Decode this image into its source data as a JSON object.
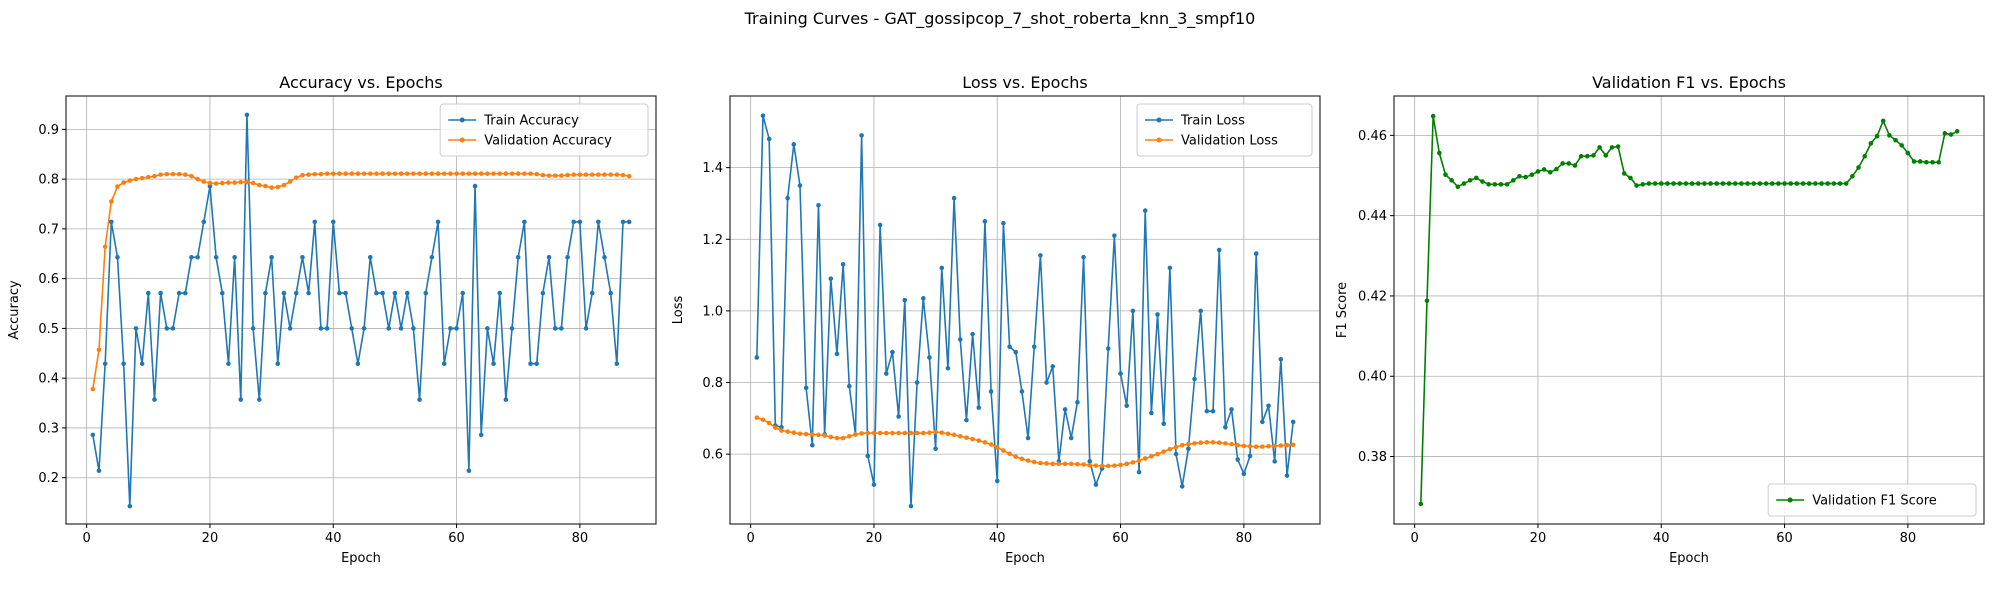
{
  "figure": {
    "suptitle": "Training Curves - GAT_gossipcop_7_shot_roberta_knn_3_smpf10"
  },
  "colors": {
    "blue": "#1f77b4",
    "orange": "#ff7f0e",
    "green": "#008000",
    "grid": "#b0b0b0"
  },
  "chart_data": [
    {
      "type": "line",
      "title": "Accuracy vs. Epochs",
      "xlabel": "Epoch",
      "ylabel": "Accuracy",
      "xlim": [
        -3.35,
        92.35
      ],
      "ylim": [
        0.107,
        0.967
      ],
      "xticks": [
        0,
        20,
        40,
        60,
        80
      ],
      "yticks": [
        0.2,
        0.3,
        0.4,
        0.5,
        0.6,
        0.7,
        0.8,
        0.9
      ],
      "ytick_decimals": 1,
      "grid": true,
      "legend_position": "upper-right",
      "series": [
        {
          "name": "Train Accuracy",
          "color": "#1f77b4",
          "x": [
            1,
            2,
            3,
            4,
            5,
            6,
            7,
            8,
            9,
            10,
            11,
            12,
            13,
            14,
            15,
            16,
            17,
            18,
            19,
            20,
            21,
            22,
            23,
            24,
            25,
            26,
            27,
            28,
            29,
            30,
            31,
            32,
            33,
            34,
            35,
            36,
            37,
            38,
            39,
            40,
            41,
            42,
            43,
            44,
            45,
            46,
            47,
            48,
            49,
            50,
            51,
            52,
            53,
            54,
            55,
            56,
            57,
            58,
            59,
            60,
            61,
            62,
            63,
            64,
            65,
            66,
            67,
            68,
            69,
            70,
            71,
            72,
            73,
            74,
            75,
            76,
            77,
            78,
            79,
            80,
            81,
            82,
            83,
            84,
            85,
            86,
            87,
            88
          ],
          "values": [
            0.286,
            0.214,
            0.429,
            0.714,
            0.643,
            0.429,
            0.143,
            0.5,
            0.429,
            0.571,
            0.357,
            0.571,
            0.5,
            0.5,
            0.571,
            0.571,
            0.643,
            0.643,
            0.714,
            0.786,
            0.643,
            0.571,
            0.429,
            0.643,
            0.357,
            0.929,
            0.5,
            0.357,
            0.571,
            0.643,
            0.429,
            0.571,
            0.5,
            0.571,
            0.643,
            0.571,
            0.714,
            0.5,
            0.5,
            0.714,
            0.571,
            0.571,
            0.5,
            0.429,
            0.5,
            0.643,
            0.571,
            0.571,
            0.5,
            0.571,
            0.5,
            0.571,
            0.5,
            0.357,
            0.571,
            0.643,
            0.714,
            0.429,
            0.5,
            0.5,
            0.571,
            0.214,
            0.786,
            0.286,
            0.5,
            0.429,
            0.571,
            0.357,
            0.5,
            0.643,
            0.714,
            0.429,
            0.429,
            0.571,
            0.643,
            0.5,
            0.5,
            0.643,
            0.714,
            0.714,
            0.5,
            0.571,
            0.714,
            0.643,
            0.571,
            0.429,
            0.714,
            0.714
          ]
        },
        {
          "name": "Validation Accuracy",
          "color": "#ff7f0e",
          "x": [
            1,
            2,
            3,
            4,
            5,
            6,
            7,
            8,
            9,
            10,
            11,
            12,
            13,
            14,
            15,
            16,
            17,
            18,
            19,
            20,
            21,
            22,
            23,
            24,
            25,
            26,
            27,
            28,
            29,
            30,
            31,
            32,
            33,
            34,
            35,
            36,
            37,
            38,
            39,
            40,
            41,
            42,
            43,
            44,
            45,
            46,
            47,
            48,
            49,
            50,
            51,
            52,
            53,
            54,
            55,
            56,
            57,
            58,
            59,
            60,
            61,
            62,
            63,
            64,
            65,
            66,
            67,
            68,
            69,
            70,
            71,
            72,
            73,
            74,
            75,
            76,
            77,
            78,
            79,
            80,
            81,
            82,
            83,
            84,
            85,
            86,
            87,
            88
          ],
          "values": [
            0.378,
            0.457,
            0.664,
            0.755,
            0.785,
            0.793,
            0.797,
            0.8,
            0.802,
            0.804,
            0.806,
            0.809,
            0.81,
            0.81,
            0.81,
            0.809,
            0.806,
            0.8,
            0.795,
            0.792,
            0.791,
            0.792,
            0.793,
            0.793,
            0.794,
            0.794,
            0.792,
            0.788,
            0.786,
            0.783,
            0.784,
            0.788,
            0.795,
            0.803,
            0.808,
            0.809,
            0.81,
            0.81,
            0.811,
            0.811,
            0.811,
            0.811,
            0.811,
            0.811,
            0.811,
            0.811,
            0.811,
            0.811,
            0.811,
            0.811,
            0.811,
            0.811,
            0.811,
            0.811,
            0.811,
            0.811,
            0.811,
            0.811,
            0.811,
            0.811,
            0.811,
            0.811,
            0.811,
            0.811,
            0.811,
            0.811,
            0.811,
            0.811,
            0.811,
            0.811,
            0.811,
            0.811,
            0.81,
            0.808,
            0.807,
            0.807,
            0.807,
            0.808,
            0.809,
            0.809,
            0.809,
            0.809,
            0.809,
            0.809,
            0.809,
            0.809,
            0.808,
            0.806
          ]
        }
      ]
    },
    {
      "type": "line",
      "title": "Loss vs. Epochs",
      "xlabel": "Epoch",
      "ylabel": "Loss",
      "xlim": [
        -3.35,
        92.35
      ],
      "ylim": [
        0.405,
        1.6
      ],
      "xticks": [
        0,
        20,
        40,
        60,
        80
      ],
      "yticks": [
        0.6,
        0.8,
        1.0,
        1.2,
        1.4
      ],
      "ytick_decimals": 1,
      "grid": true,
      "legend_position": "upper-right",
      "series": [
        {
          "name": "Train Loss",
          "color": "#1f77b4",
          "x": [
            1,
            2,
            3,
            4,
            5,
            6,
            7,
            8,
            9,
            10,
            11,
            12,
            13,
            14,
            15,
            16,
            17,
            18,
            19,
            20,
            21,
            22,
            23,
            24,
            25,
            26,
            27,
            28,
            29,
            30,
            31,
            32,
            33,
            34,
            35,
            36,
            37,
            38,
            39,
            40,
            41,
            42,
            43,
            44,
            45,
            46,
            47,
            48,
            49,
            50,
            51,
            52,
            53,
            54,
            55,
            56,
            57,
            58,
            59,
            60,
            61,
            62,
            63,
            64,
            65,
            66,
            67,
            68,
            69,
            70,
            71,
            72,
            73,
            74,
            75,
            76,
            77,
            78,
            79,
            80,
            81,
            82,
            83,
            84,
            85,
            86,
            87,
            88
          ],
          "values": [
            0.87,
            1.545,
            1.48,
            0.68,
            0.675,
            1.315,
            1.465,
            1.35,
            0.785,
            0.625,
            1.295,
            0.655,
            1.09,
            0.88,
            1.13,
            0.79,
            0.655,
            1.49,
            0.595,
            0.515,
            1.24,
            0.825,
            0.885,
            0.705,
            1.03,
            0.455,
            0.8,
            1.035,
            0.87,
            0.615,
            1.12,
            0.84,
            1.315,
            0.92,
            0.695,
            0.935,
            0.73,
            1.25,
            0.775,
            0.525,
            1.245,
            0.9,
            0.885,
            0.775,
            0.645,
            0.9,
            1.155,
            0.8,
            0.845,
            0.58,
            0.725,
            0.645,
            0.745,
            1.15,
            0.58,
            0.515,
            0.56,
            0.895,
            1.21,
            0.825,
            0.735,
            1.0,
            0.55,
            1.28,
            0.715,
            0.99,
            0.685,
            1.12,
            0.6,
            0.51,
            0.615,
            0.81,
            1.0,
            0.72,
            0.72,
            1.17,
            0.675,
            0.725,
            0.585,
            0.545,
            0.595,
            1.16,
            0.69,
            0.735,
            0.58,
            0.865,
            0.54,
            0.69
          ]
        },
        {
          "name": "Validation Loss",
          "color": "#ff7f0e",
          "x": [
            1,
            2,
            3,
            4,
            5,
            6,
            7,
            8,
            9,
            10,
            11,
            12,
            13,
            14,
            15,
            16,
            17,
            18,
            19,
            20,
            21,
            22,
            23,
            24,
            25,
            26,
            27,
            28,
            29,
            30,
            31,
            32,
            33,
            34,
            35,
            36,
            37,
            38,
            39,
            40,
            41,
            42,
            43,
            44,
            45,
            46,
            47,
            48,
            49,
            50,
            51,
            52,
            53,
            54,
            55,
            56,
            57,
            58,
            59,
            60,
            61,
            62,
            63,
            64,
            65,
            66,
            67,
            68,
            69,
            70,
            71,
            72,
            73,
            74,
            75,
            76,
            77,
            78,
            79,
            80,
            81,
            82,
            83,
            84,
            85,
            86,
            87,
            88
          ],
          "values": [
            0.702,
            0.696,
            0.687,
            0.674,
            0.666,
            0.663,
            0.66,
            0.657,
            0.656,
            0.655,
            0.654,
            0.652,
            0.648,
            0.645,
            0.645,
            0.65,
            0.655,
            0.658,
            0.659,
            0.659,
            0.659,
            0.659,
            0.659,
            0.659,
            0.659,
            0.659,
            0.659,
            0.659,
            0.66,
            0.662,
            0.66,
            0.657,
            0.654,
            0.65,
            0.646,
            0.642,
            0.638,
            0.633,
            0.627,
            0.619,
            0.61,
            0.601,
            0.593,
            0.587,
            0.582,
            0.578,
            0.575,
            0.574,
            0.573,
            0.573,
            0.573,
            0.573,
            0.572,
            0.571,
            0.569,
            0.568,
            0.567,
            0.567,
            0.568,
            0.57,
            0.573,
            0.577,
            0.582,
            0.588,
            0.594,
            0.6,
            0.607,
            0.614,
            0.62,
            0.625,
            0.628,
            0.63,
            0.632,
            0.633,
            0.633,
            0.632,
            0.63,
            0.628,
            0.625,
            0.623,
            0.622,
            0.621,
            0.621,
            0.622,
            0.623,
            0.624,
            0.625,
            0.626
          ]
        }
      ]
    },
    {
      "type": "line",
      "title": "Validation F1 vs. Epochs",
      "xlabel": "Epoch",
      "ylabel": "F1 Score",
      "xlim": [
        -3.35,
        92.35
      ],
      "ylim": [
        0.3632,
        0.4698
      ],
      "xticks": [
        0,
        20,
        40,
        60,
        80
      ],
      "yticks": [
        0.38,
        0.4,
        0.42,
        0.44,
        0.46
      ],
      "ytick_decimals": 2,
      "grid": true,
      "legend_position": "lower-right",
      "series": [
        {
          "name": "Validation F1 Score",
          "color": "#008000",
          "x": [
            1,
            2,
            3,
            4,
            5,
            6,
            7,
            8,
            9,
            10,
            11,
            12,
            13,
            14,
            15,
            16,
            17,
            18,
            19,
            20,
            21,
            22,
            23,
            24,
            25,
            26,
            27,
            28,
            29,
            30,
            31,
            32,
            33,
            34,
            35,
            36,
            37,
            38,
            39,
            40,
            41,
            42,
            43,
            44,
            45,
            46,
            47,
            48,
            49,
            50,
            51,
            52,
            53,
            54,
            55,
            56,
            57,
            58,
            59,
            60,
            61,
            62,
            63,
            64,
            65,
            66,
            67,
            68,
            69,
            70,
            71,
            72,
            73,
            74,
            75,
            76,
            77,
            78,
            79,
            80,
            81,
            82,
            83,
            84,
            85,
            86,
            87,
            88
          ],
          "values": [
            0.3682,
            0.4188,
            0.4648,
            0.4556,
            0.4502,
            0.4488,
            0.4472,
            0.448,
            0.4488,
            0.4494,
            0.4485,
            0.4478,
            0.4478,
            0.4478,
            0.4478,
            0.4488,
            0.4498,
            0.4496,
            0.4502,
            0.451,
            0.4515,
            0.4508,
            0.4516,
            0.453,
            0.453,
            0.4525,
            0.4548,
            0.4548,
            0.455,
            0.457,
            0.455,
            0.457,
            0.4572,
            0.4505,
            0.4494,
            0.4475,
            0.4478,
            0.448,
            0.448,
            0.448,
            0.448,
            0.448,
            0.448,
            0.448,
            0.448,
            0.448,
            0.448,
            0.448,
            0.448,
            0.448,
            0.448,
            0.448,
            0.448,
            0.448,
            0.448,
            0.448,
            0.448,
            0.448,
            0.448,
            0.448,
            0.448,
            0.448,
            0.448,
            0.448,
            0.448,
            0.448,
            0.448,
            0.448,
            0.448,
            0.448,
            0.4498,
            0.452,
            0.4548,
            0.458,
            0.4598,
            0.4636,
            0.46,
            0.4588,
            0.4575,
            0.4556,
            0.4535,
            0.4535,
            0.4533,
            0.4533,
            0.4533,
            0.4605,
            0.4602,
            0.461
          ]
        }
      ]
    }
  ]
}
